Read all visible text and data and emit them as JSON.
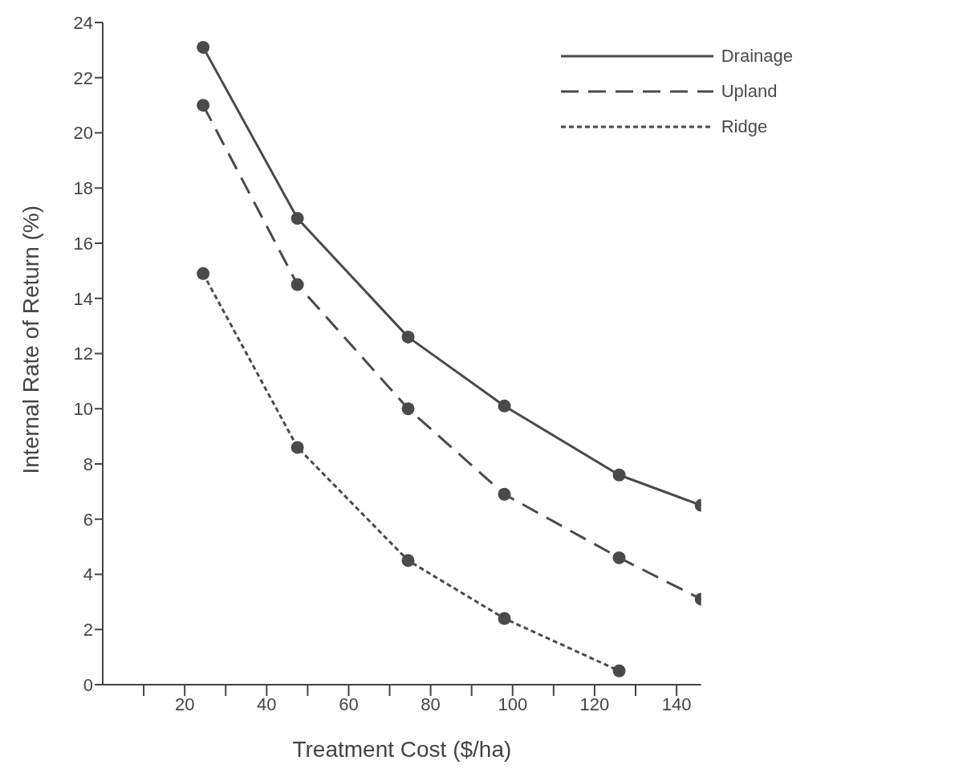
{
  "chart_data": {
    "type": "line",
    "xlabel": "Treatment Cost ($/ha)",
    "ylabel": "Internal Rate of Return (%)",
    "x": [
      24.5,
      47.5,
      74.5,
      98,
      126,
      146
    ],
    "series": [
      {
        "name": "Drainage",
        "color": "#4a4a4a",
        "line_style": "solid",
        "values": [
          23.1,
          16.9,
          12.6,
          10.1,
          7.6,
          6.5
        ]
      },
      {
        "name": "Upland",
        "color": "#4a4a4a",
        "line_style": "dashed",
        "values": [
          21,
          14.5,
          10,
          6.9,
          4.6,
          3.1
        ]
      },
      {
        "name": "Ridge",
        "color": "#4a4a4a",
        "line_style": "dotted",
        "values": [
          14.9,
          8.6,
          4.5,
          2.4,
          0.5,
          null
        ]
      }
    ],
    "xlim": [
      0,
      146
    ],
    "xticks": [
      {
        "value": 10,
        "label": null
      },
      20,
      {
        "value": 30,
        "label": null
      },
      40,
      {
        "value": 50,
        "label": null
      },
      60,
      {
        "value": 70,
        "label": null
      },
      80,
      {
        "value": 90,
        "label": null
      },
      100,
      {
        "value": 110,
        "label": null
      },
      120,
      {
        "value": 130,
        "label": null
      },
      140
    ],
    "ylim": [
      0,
      24
    ],
    "yticks": [
      0,
      2,
      4,
      6,
      8,
      10,
      12,
      14,
      16,
      18,
      20,
      22,
      24
    ],
    "grid": false,
    "legend": "top right",
    "marker": "circle"
  }
}
